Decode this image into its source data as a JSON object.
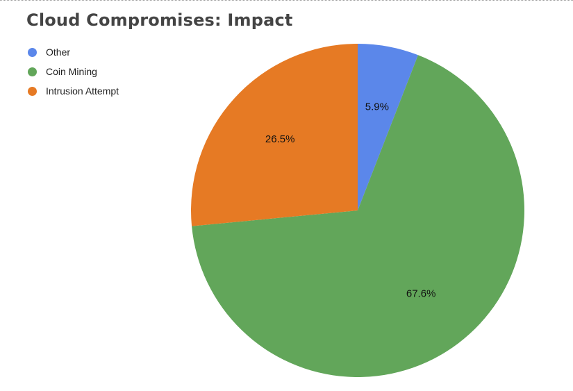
{
  "chart_data": {
    "type": "pie",
    "title": "Cloud Compromises: Impact",
    "legend_position": "top-left",
    "slices": [
      {
        "label": "Other",
        "value": 5.9,
        "display": "5.9%",
        "color": "#5b87ea"
      },
      {
        "label": "Coin Mining",
        "value": 67.6,
        "display": "67.6%",
        "color": "#62a65a"
      },
      {
        "label": "Intrusion Attempt",
        "value": 26.5,
        "display": "26.5%",
        "color": "#e67a24"
      }
    ]
  }
}
